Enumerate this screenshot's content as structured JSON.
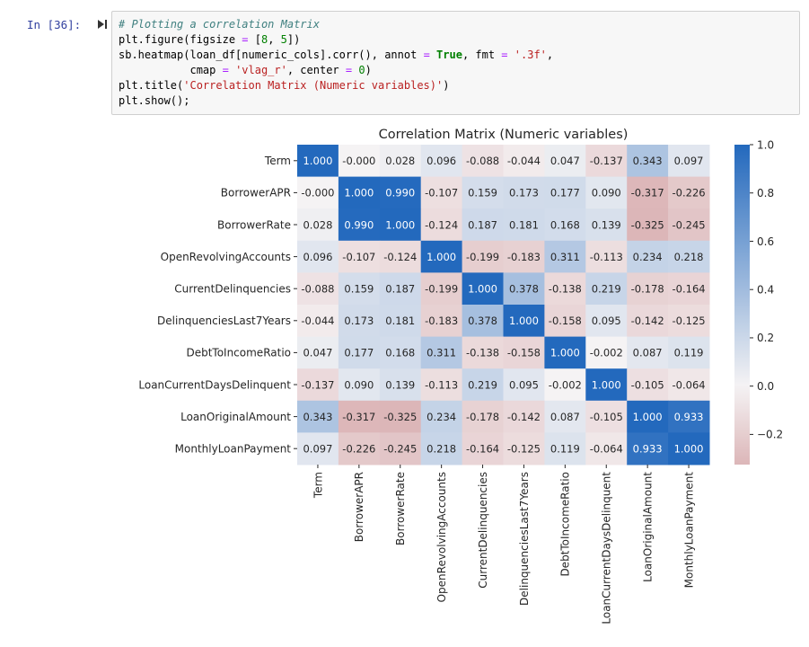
{
  "cell": {
    "prompt": "In [36]:",
    "run_icon": "run-cell-icon",
    "code_lines": [
      [
        {
          "t": "# Plotting a correlation Matrix",
          "c": "com"
        }
      ],
      [
        {
          "t": "plt.figure(figsize "
        },
        {
          "t": "=",
          "c": "op"
        },
        {
          "t": " ["
        },
        {
          "t": "8",
          "c": "num"
        },
        {
          "t": ", "
        },
        {
          "t": "5",
          "c": "num"
        },
        {
          "t": "])"
        }
      ],
      [
        {
          "t": "sb.heatmap(loan_df[numeric_cols].corr(), annot "
        },
        {
          "t": "=",
          "c": "op"
        },
        {
          "t": " "
        },
        {
          "t": "True",
          "c": "kw"
        },
        {
          "t": ", fmt "
        },
        {
          "t": "=",
          "c": "op"
        },
        {
          "t": " "
        },
        {
          "t": "'.3f'",
          "c": "str"
        },
        {
          "t": ","
        }
      ],
      [
        {
          "t": "           cmap "
        },
        {
          "t": "=",
          "c": "op"
        },
        {
          "t": " "
        },
        {
          "t": "'vlag_r'",
          "c": "str"
        },
        {
          "t": ", center "
        },
        {
          "t": "=",
          "c": "op"
        },
        {
          "t": " "
        },
        {
          "t": "0",
          "c": "num"
        },
        {
          "t": ")"
        }
      ],
      [
        {
          "t": "plt.title("
        },
        {
          "t": "'Correlation Matrix (Numeric variables)'",
          "c": "str"
        },
        {
          "t": ")"
        }
      ],
      [
        {
          "t": "plt.show();"
        }
      ]
    ]
  },
  "chart_data": {
    "type": "heatmap",
    "title": "Correlation Matrix (Numeric variables)",
    "xlabel": "",
    "ylabel": "",
    "labels": [
      "Term",
      "BorrowerAPR",
      "BorrowerRate",
      "OpenRevolvingAccounts",
      "CurrentDelinquencies",
      "DelinquenciesLast7Years",
      "DebtToIncomeRatio",
      "LoanCurrentDaysDelinquent",
      "LoanOriginalAmount",
      "MonthlyLoanPayment"
    ],
    "values": [
      [
        1.0,
        -0.0,
        0.028,
        0.096,
        -0.088,
        -0.044,
        0.047,
        -0.137,
        0.343,
        0.097
      ],
      [
        -0.0,
        1.0,
        0.99,
        -0.107,
        0.159,
        0.173,
        0.177,
        0.09,
        -0.317,
        -0.226
      ],
      [
        0.028,
        0.99,
        1.0,
        -0.124,
        0.187,
        0.181,
        0.168,
        0.139,
        -0.325,
        -0.245
      ],
      [
        0.096,
        -0.107,
        -0.124,
        1.0,
        -0.199,
        -0.183,
        0.311,
        -0.113,
        0.234,
        0.218
      ],
      [
        -0.088,
        0.159,
        0.187,
        -0.199,
        1.0,
        0.378,
        -0.138,
        0.219,
        -0.178,
        -0.164
      ],
      [
        -0.044,
        0.173,
        0.181,
        -0.183,
        0.378,
        1.0,
        -0.158,
        0.095,
        -0.142,
        -0.125
      ],
      [
        0.047,
        0.177,
        0.168,
        0.311,
        -0.138,
        -0.158,
        1.0,
        -0.002,
        0.087,
        0.119
      ],
      [
        -0.137,
        0.09,
        0.139,
        -0.113,
        0.219,
        0.095,
        -0.002,
        1.0,
        -0.105,
        -0.064
      ],
      [
        0.343,
        -0.317,
        -0.325,
        0.234,
        -0.178,
        -0.142,
        0.087,
        -0.105,
        1.0,
        0.933
      ],
      [
        0.097,
        -0.226,
        -0.245,
        0.218,
        -0.164,
        -0.125,
        0.119,
        -0.064,
        0.933,
        1.0
      ]
    ],
    "annotation_format": ".3f",
    "colormap": "vlag_r",
    "center": 0,
    "colorbar": {
      "min": -0.325,
      "max": 1.0,
      "ticks": [
        1.0,
        0.8,
        0.6,
        0.4,
        0.2,
        0.0,
        -0.2
      ],
      "tick_labels": [
        "1.0",
        "0.8",
        "0.6",
        "0.4",
        "0.2",
        "0.0",
        "−0.2"
      ],
      "placement": "right"
    },
    "colors": {
      "positive": "#2369bd",
      "neutral": "#f5f3f4",
      "negative": "#a9373b"
    }
  }
}
